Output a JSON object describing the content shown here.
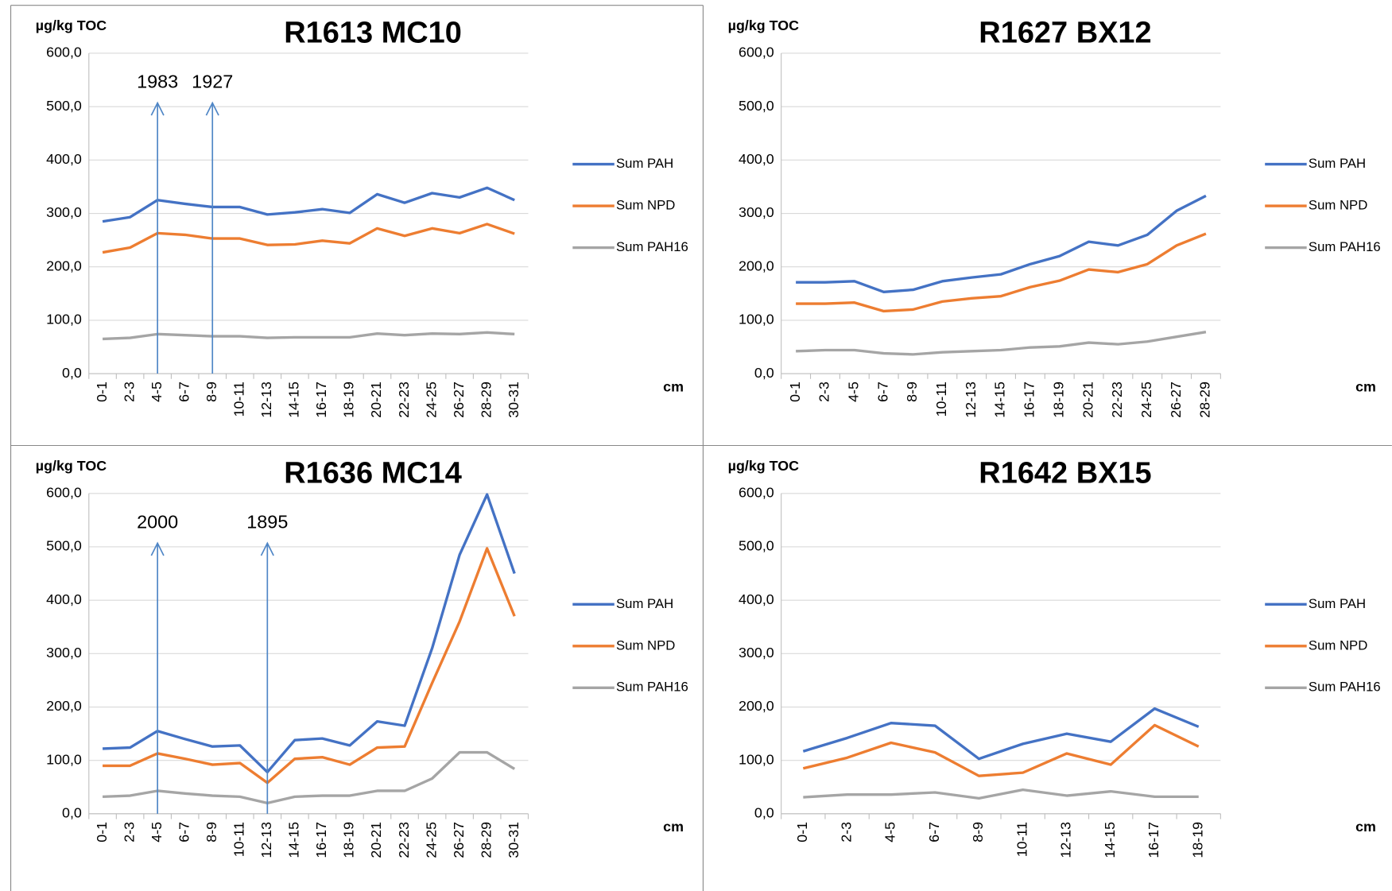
{
  "chart_data": [
    {
      "type": "line",
      "title": "R1613 MC10",
      "y_label": "µg/kg TOC",
      "x_label": "cm",
      "categories": [
        "0-1",
        "2-3",
        "4-5",
        "6-7",
        "8-9",
        "10-11",
        "12-13",
        "14-15",
        "16-17",
        "18-19",
        "20-21",
        "22-23",
        "24-25",
        "26-27",
        "28-29",
        "30-31"
      ],
      "series": [
        {
          "name": "Sum PAH",
          "color": "#4472c4",
          "values": [
            285,
            293,
            325,
            318,
            312,
            312,
            298,
            302,
            308,
            301,
            336,
            320,
            338,
            330,
            348,
            325
          ]
        },
        {
          "name": "Sum NPD",
          "color": "#ed7d31",
          "values": [
            227,
            236,
            263,
            260,
            253,
            253,
            241,
            242,
            249,
            244,
            272,
            258,
            272,
            263,
            280,
            262
          ]
        },
        {
          "name": "Sum PAH16",
          "color": "#a5a5a5",
          "values": [
            65,
            67,
            74,
            72,
            70,
            70,
            67,
            68,
            68,
            68,
            75,
            72,
            75,
            74,
            77,
            74
          ]
        }
      ],
      "ylim": [
        0,
        600
      ],
      "yticks": [
        {
          "value": 0,
          "label": "0,0"
        },
        {
          "value": 100,
          "label": "100,0"
        },
        {
          "value": 200,
          "label": "200,0"
        },
        {
          "value": 300,
          "label": "300,0"
        },
        {
          "value": 400,
          "label": "400,0"
        },
        {
          "value": 500,
          "label": "500,0"
        },
        {
          "value": 600,
          "label": "600,0"
        }
      ],
      "grid": true,
      "annotations": [
        {
          "text": "1983",
          "x": "4-5"
        },
        {
          "text": "1927",
          "x": "8-9"
        }
      ]
    },
    {
      "type": "line",
      "title": "R1627 BX12",
      "y_label": "µg/kg TOC",
      "x_label": "cm",
      "categories": [
        "0-1",
        "2-3",
        "4-5",
        "6-7",
        "8-9",
        "10-11",
        "12-13",
        "14-15",
        "16-17",
        "18-19",
        "20-21",
        "22-23",
        "24-25",
        "26-27",
        "28-29"
      ],
      "series": [
        {
          "name": "Sum PAH",
          "color": "#4472c4",
          "values": [
            171,
            171,
            173,
            153,
            157,
            173,
            180,
            186,
            205,
            220,
            247,
            240,
            260,
            305,
            333
          ]
        },
        {
          "name": "Sum NPD",
          "color": "#ed7d31",
          "values": [
            131,
            131,
            133,
            117,
            120,
            135,
            141,
            145,
            162,
            174,
            195,
            190,
            205,
            240,
            262
          ]
        },
        {
          "name": "Sum PAH16",
          "color": "#a5a5a5",
          "values": [
            42,
            44,
            44,
            38,
            36,
            40,
            42,
            44,
            49,
            51,
            58,
            55,
            60,
            69,
            78
          ]
        }
      ],
      "ylim": [
        0,
        600
      ],
      "yticks": [
        {
          "value": 0,
          "label": "0,0"
        },
        {
          "value": 100,
          "label": "100,0"
        },
        {
          "value": 200,
          "label": "200,0"
        },
        {
          "value": 300,
          "label": "300,0"
        },
        {
          "value": 400,
          "label": "400,0"
        },
        {
          "value": 500,
          "label": "500,0"
        },
        {
          "value": 600,
          "label": "600,0"
        }
      ],
      "grid": true
    },
    {
      "type": "line",
      "title": "R1636 MC14",
      "y_label": "µg/kg TOC",
      "x_label": "cm",
      "categories": [
        "0-1",
        "2-3",
        "4-5",
        "6-7",
        "8-9",
        "10-11",
        "12-13",
        "14-15",
        "16-17",
        "18-19",
        "20-21",
        "22-23",
        "24-25",
        "26-27",
        "28-29",
        "30-31"
      ],
      "series": [
        {
          "name": "Sum PAH",
          "color": "#4472c4",
          "values": [
            122,
            124,
            155,
            140,
            126,
            128,
            78,
            138,
            141,
            128,
            173,
            165,
            310,
            485,
            598,
            450
          ]
        },
        {
          "name": "Sum NPD",
          "color": "#ed7d31",
          "values": [
            90,
            90,
            113,
            103,
            92,
            95,
            58,
            103,
            106,
            92,
            124,
            126,
            245,
            360,
            497,
            370
          ]
        },
        {
          "name": "Sum PAH16",
          "color": "#a5a5a5",
          "values": [
            32,
            34,
            43,
            38,
            34,
            32,
            20,
            32,
            34,
            34,
            43,
            43,
            66,
            115,
            115,
            84
          ]
        }
      ],
      "ylim": [
        0,
        600
      ],
      "yticks": [
        {
          "value": 0,
          "label": "0,0"
        },
        {
          "value": 100,
          "label": "100,0"
        },
        {
          "value": 200,
          "label": "200,0"
        },
        {
          "value": 300,
          "label": "300,0"
        },
        {
          "value": 400,
          "label": "400,0"
        },
        {
          "value": 500,
          "label": "500,0"
        },
        {
          "value": 600,
          "label": "600,0"
        }
      ],
      "grid": true,
      "annotations": [
        {
          "text": "2000",
          "x": "4-5"
        },
        {
          "text": "1895",
          "x": "12-13"
        }
      ]
    },
    {
      "type": "line",
      "title": "R1642 BX15",
      "y_label": "µg/kg TOC",
      "x_label": "cm",
      "categories": [
        "0-1",
        "2-3",
        "4-5",
        "6-7",
        "8-9",
        "10-11",
        "12-13",
        "14-15",
        "16-17",
        "18-19"
      ],
      "series": [
        {
          "name": "Sum PAH",
          "color": "#4472c4",
          "values": [
            117,
            142,
            170,
            165,
            103,
            131,
            150,
            135,
            197,
            163
          ]
        },
        {
          "name": "Sum NPD",
          "color": "#ed7d31",
          "values": [
            85,
            105,
            133,
            115,
            71,
            77,
            113,
            92,
            166,
            126
          ]
        },
        {
          "name": "Sum PAH16",
          "color": "#a5a5a5",
          "values": [
            31,
            36,
            36,
            40,
            29,
            45,
            34,
            42,
            32,
            32
          ]
        }
      ],
      "ylim": [
        0,
        600
      ],
      "yticks": [
        {
          "value": 0,
          "label": "0,0"
        },
        {
          "value": 100,
          "label": "100,0"
        },
        {
          "value": 200,
          "label": "200,0"
        },
        {
          "value": 300,
          "label": "300,0"
        },
        {
          "value": 400,
          "label": "400,0"
        },
        {
          "value": 500,
          "label": "500,0"
        },
        {
          "value": 600,
          "label": "600,0"
        }
      ],
      "grid": true
    }
  ]
}
